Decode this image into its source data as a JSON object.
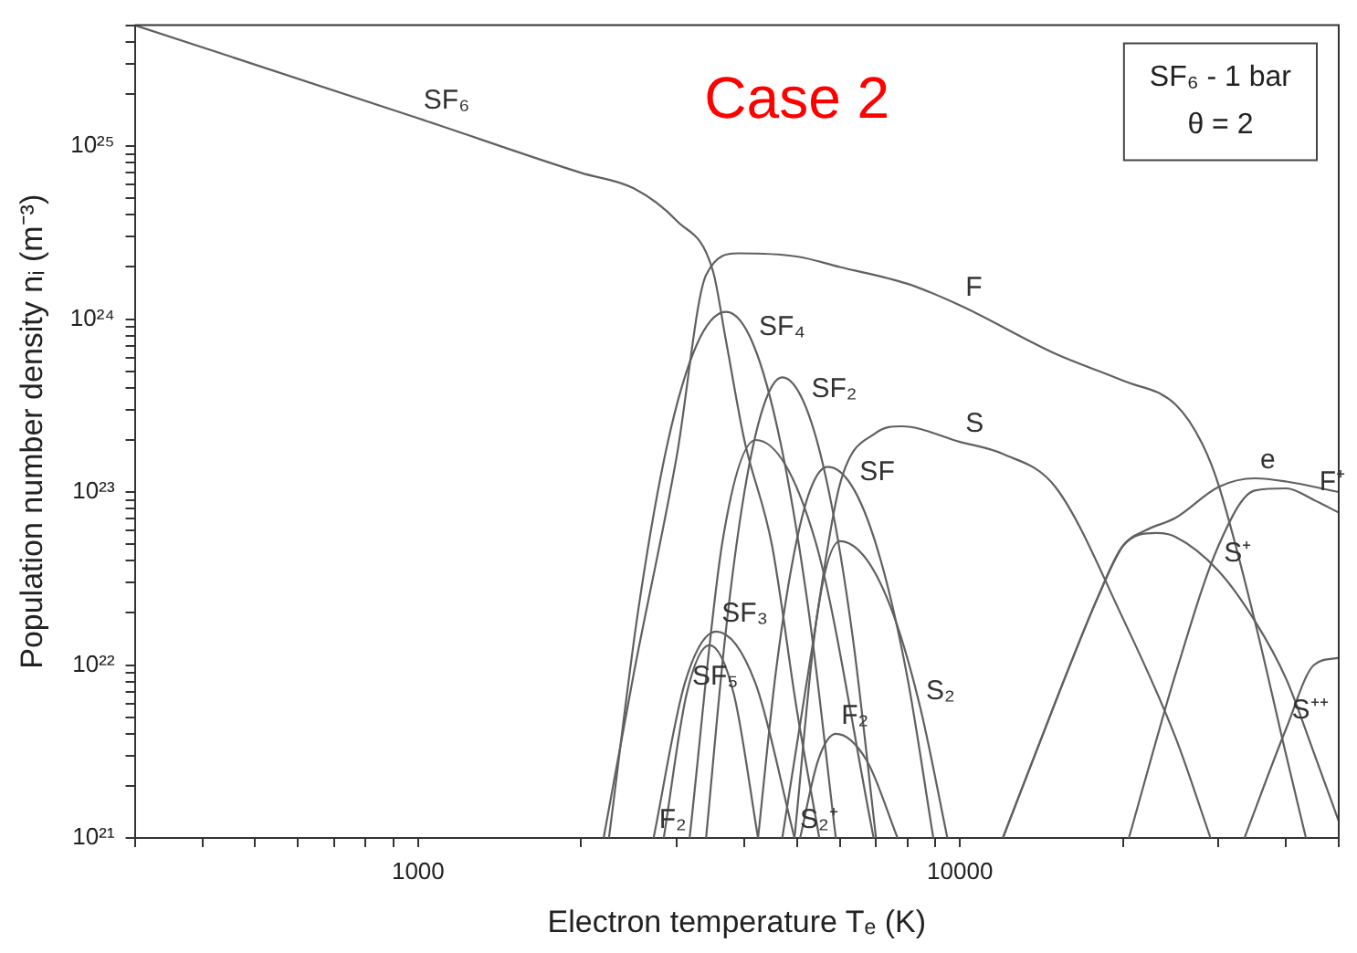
{
  "chart_data": {
    "type": "line",
    "title": "Case 2",
    "xlabel": "Electron temperature Tₑ (K)",
    "ylabel": "Population number density nᵢ (m⁻³)",
    "log": "xy",
    "xlim": [
      300,
      50000
    ],
    "ylim": [
      1e+21,
      5e+25
    ],
    "xticks": [
      {
        "value": 300,
        "label": null
      },
      {
        "value": 400,
        "label": null
      },
      {
        "value": 500,
        "label": null
      },
      {
        "value": 600,
        "label": null
      },
      {
        "value": 700,
        "label": null
      },
      {
        "value": 800,
        "label": null
      },
      {
        "value": 900,
        "label": null
      },
      1000,
      {
        "value": 2000,
        "label": null
      },
      {
        "value": 3000,
        "label": null
      },
      {
        "value": 4000,
        "label": null
      },
      {
        "value": 5000,
        "label": null
      },
      {
        "value": 6000,
        "label": null
      },
      {
        "value": 7000,
        "label": null
      },
      {
        "value": 8000,
        "label": null
      },
      {
        "value": 9000,
        "label": null
      },
      10000,
      {
        "value": 20000,
        "label": null
      },
      {
        "value": 30000,
        "label": null
      },
      {
        "value": 40000,
        "label": null
      },
      {
        "value": 50000,
        "label": null
      }
    ],
    "yticks": [
      {
        "value": 1e+21,
        "label": "10²¹"
      },
      {
        "value": 2e+21,
        "label": null
      },
      {
        "value": 3e+21,
        "label": null
      },
      {
        "value": 4e+21,
        "label": null
      },
      {
        "value": 5e+21,
        "label": null
      },
      {
        "value": 6e+21,
        "label": null
      },
      {
        "value": 7e+21,
        "label": null
      },
      {
        "value": 8e+21,
        "label": null
      },
      {
        "value": 9e+21,
        "label": null
      },
      {
        "value": 1e+22,
        "label": "10²²"
      },
      {
        "value": 2e+22,
        "label": null
      },
      {
        "value": 3e+22,
        "label": null
      },
      {
        "value": 4e+22,
        "label": null
      },
      {
        "value": 5e+22,
        "label": null
      },
      {
        "value": 6e+22,
        "label": null
      },
      {
        "value": 7e+22,
        "label": null
      },
      {
        "value": 8e+22,
        "label": null
      },
      {
        "value": 9e+22,
        "label": null
      },
      {
        "value": 1e+23,
        "label": "10²³"
      },
      {
        "value": 2e+23,
        "label": null
      },
      {
        "value": 3e+23,
        "label": null
      },
      {
        "value": 4e+23,
        "label": null
      },
      {
        "value": 5e+23,
        "label": null
      },
      {
        "value": 6e+23,
        "label": null
      },
      {
        "value": 7e+23,
        "label": null
      },
      {
        "value": 8e+23,
        "label": null
      },
      {
        "value": 9e+23,
        "label": null
      },
      {
        "value": 1e+24,
        "label": "10²⁴"
      },
      {
        "value": 2e+24,
        "label": null
      },
      {
        "value": 3e+24,
        "label": null
      },
      {
        "value": 4e+24,
        "label": null
      },
      {
        "value": 5e+24,
        "label": null
      },
      {
        "value": 6e+24,
        "label": null
      },
      {
        "value": 7e+24,
        "label": null
      },
      {
        "value": 8e+24,
        "label": null
      },
      {
        "value": 9e+24,
        "label": null
      },
      {
        "value": 1e+25,
        "label": "10²⁵"
      },
      {
        "value": 2e+25,
        "label": null
      },
      {
        "value": 3e+25,
        "label": null
      },
      {
        "value": 4e+25,
        "label": null
      },
      {
        "value": 5e+25,
        "label": null
      }
    ],
    "series": [
      {
        "color": "#606060",
        "x": [
          300,
          1000,
          2000,
          2500,
          3000,
          3500,
          3700,
          4000,
          4500,
          5000,
          5500
        ],
        "values": [
          5e+25,
          1.45e+25,
          7e+24,
          5.7e+24,
          3.7e+24,
          1.9e+24,
          7.5e+23,
          2e+23,
          4.9e+22,
          5.5e+21,
          1e+21
        ]
      },
      {
        "color": "#606060",
        "x": [
          2200,
          2500,
          3000,
          3400,
          3900,
          5000,
          6000,
          8000,
          10000,
          15000,
          20000,
          25000,
          28000,
          30000,
          35000,
          40000,
          43500
        ],
        "values": [
          1e+21,
          8.9e+21,
          1.6e+23,
          1.8e+24,
          2.4e+24,
          2.3e+24,
          2e+24,
          1.6e+24,
          1.2e+24,
          6.3e+23,
          4.4e+23,
          3.2e+23,
          1.9e+23,
          1.1e+23,
          1.8e+22,
          3e+21,
          1e+21
        ]
      },
      {
        "color": "#606060",
        "x": [
          2250,
          2550,
          2885,
          3267,
          3700,
          4158,
          4670,
          5252,
          5900
        ],
        "values": [
          1e+21,
          2.1e+22,
          1.9e+23,
          7.1e+23,
          1.1e+24,
          7.1e+23,
          1.9e+23,
          2.1e+22,
          1e+21
        ]
      },
      {
        "color": "#606060",
        "x": [
          3400,
          3688,
          3999,
          4335,
          4700,
          5194,
          5736,
          6338,
          7000
        ],
        "values": [
          1e+21,
          1.46e+22,
          9.9e+22,
          3.1e+23,
          4.6e+23,
          3.1e+23,
          9.9e+22,
          1.46e+22,
          1e+21
        ]
      },
      {
        "color": "#606060",
        "x": [
          3170,
          3650,
          4200,
          5400,
          6930
        ],
        "values": [
          1e+21,
          5.3e+22,
          2e+23,
          5.3e+22,
          1e+21
        ]
      },
      {
        "color": "#606060",
        "x": [
          4700,
          5300,
          6000,
          7000,
          7800,
          10000,
          12000,
          15000,
          20000,
          25000,
          29000
        ],
        "values": [
          1e+21,
          1.1e+22,
          1.1e+23,
          2.2e+23,
          2.4e+23,
          1.95e+23,
          1.66e+23,
          1.07e+23,
          1.85e+22,
          3.8e+21,
          1e+21
        ]
      },
      {
        "color": "#606060",
        "x": [
          4240,
          4565,
          4917,
          5293,
          5700,
          6379,
          7135,
          7985,
          8930
        ],
        "values": [
          1e+21,
          8.7e+21,
          4.07e+22,
          1.03e+23,
          1.4e+23,
          1.03e+23,
          4.07e+22,
          8.7e+21,
          1e+21
        ]
      },
      {
        "color": "#606060",
        "x": [
          4950,
          5450,
          6000,
          6730,
          7543,
          8456,
          9480
        ],
        "values": [
          1e+21,
          1.94e+22,
          5.2e+22,
          4.06e+22,
          1.94e+22,
          5.6e+21,
          1e+21
        ]
      },
      {
        "color": "#606060",
        "x": [
          2720,
          3108,
          3550,
          4190,
          4950
        ],
        "values": [
          1e+21,
          7.9e+21,
          1.56e+22,
          7.9e+21,
          1e+21
        ]
      },
      {
        "color": "#606060",
        "x": [
          2840,
          3130,
          3450,
          3825,
          4240
        ],
        "values": [
          1e+21,
          6.8e+21,
          1.3e+22,
          6.8e+21,
          1e+21
        ]
      },
      {
        "color": "#606060",
        "x": [
          5070,
          5470,
          5900,
          6730,
          7670
        ],
        "values": [
          1e+21,
          2.8e+21,
          4e+21,
          2.8e+21,
          1e+21
        ]
      },
      {
        "color": "#606060",
        "x": [
          12000,
          15000,
          18000,
          20000,
          22000,
          25000,
          30000,
          35000,
          40000,
          50000
        ],
        "values": [
          1e+21,
          6.1e+21,
          2.5e+22,
          4.9e+22,
          6e+22,
          7.1e+22,
          1.07e+23,
          1.2e+23,
          1.15e+23,
          1e+23
        ]
      },
      {
        "color": "#606060",
        "x": [
          12000,
          15000,
          18000,
          20000,
          23000,
          25000,
          30000,
          35000,
          40000,
          45000,
          50000
        ],
        "values": [
          1e+21,
          6.1e+21,
          2.5e+22,
          4.9e+22,
          5.8e+22,
          5.5e+22,
          3.5e+22,
          1.8e+22,
          8.3e+21,
          3.1e+21,
          1.25e+21
        ]
      },
      {
        "color": "#606060",
        "x": [
          20500,
          25000,
          30000,
          35000,
          40000,
          45000,
          50000
        ],
        "values": [
          1e+21,
          8.9e+21,
          4.9e+22,
          1.02e+23,
          1.05e+23,
          9e+22,
          7.6e+22
        ]
      },
      {
        "color": "#606060",
        "x": [
          33500,
          40000,
          45000,
          50000
        ],
        "values": [
          1e+21,
          4.3e+21,
          1e+22,
          1.1e+22
        ]
      }
    ],
    "annotations": [
      "SF₆ - 1 bar",
      "θ = 2",
      {
        "text": "SF₆",
        "x": 1000,
        "y": 1.45e+25
      },
      {
        "text": "F",
        "x": 10000,
        "y": 1.2e+24
      },
      {
        "text": "SF₄",
        "x": 4158,
        "y": 7.1e+23
      },
      {
        "text": "SF₂",
        "x": 5194,
        "y": 3.1e+23
      },
      {
        "text": "S",
        "x": 10000,
        "y": 1.95e+23
      },
      {
        "text": "SF",
        "x": 6379,
        "y": 1.03e+23
      },
      {
        "text": "e",
        "x": 35000,
        "y": 1.2e+23
      },
      {
        "text": "F⁺",
        "x": 45000,
        "y": 9e+22
      },
      {
        "text": "S⁺",
        "x": 30000,
        "y": 3.5e+22
      },
      {
        "text": "S⁺⁺",
        "x": 40000,
        "y": 4.3e+21
      },
      {
        "text": "SF₃",
        "x": 3550,
        "y": 1.56e+22
      },
      {
        "text": "SF₅",
        "x": 3130,
        "y": 6.8e+21
      },
      {
        "text": "F₂",
        "x": 2720,
        "y": 1e+21
      },
      {
        "text": "S₂⁺",
        "x": 4950,
        "y": 1e+21
      },
      {
        "text": "F₂",
        "x": 5900,
        "y": 4e+21
      },
      {
        "text": "S₂",
        "x": 8456,
        "y": 5.6e+21
      }
    ]
  }
}
